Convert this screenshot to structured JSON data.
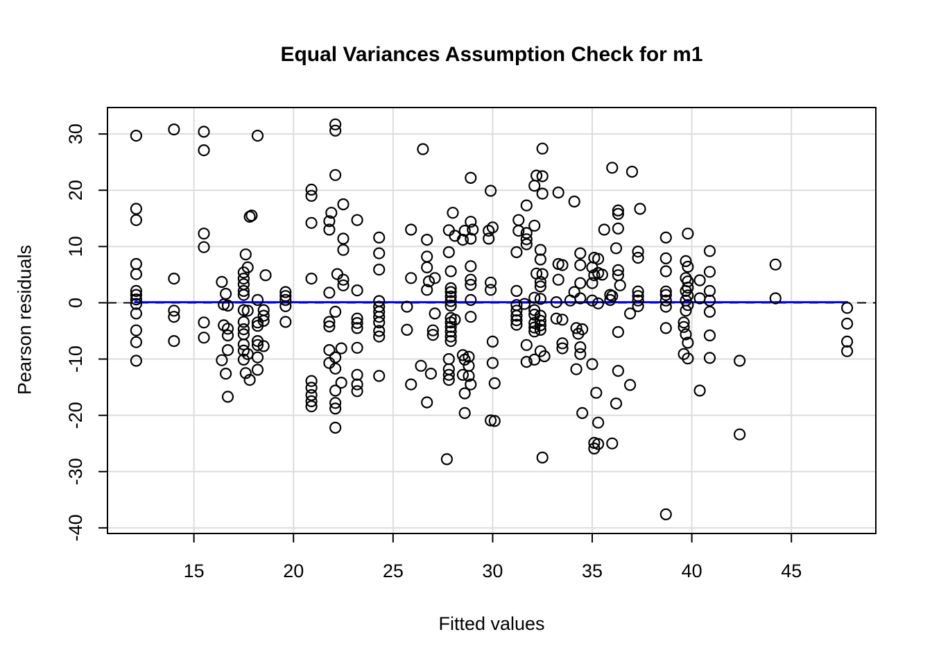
{
  "chart_data": {
    "type": "scatter",
    "title": "Equal Variances Assumption Check for m1",
    "xlabel": "Fitted values",
    "ylabel": "Pearson residuals",
    "xlim": [
      10.66,
      49.24
    ],
    "ylim": [
      -41.0,
      34.7
    ],
    "x_ticks": [
      15,
      20,
      25,
      30,
      35,
      40,
      45
    ],
    "y_ticks": [
      -40,
      -30,
      -20,
      -10,
      0,
      10,
      20,
      30
    ],
    "grid": true,
    "legend": false,
    "colors": {
      "background": "#ffffff",
      "grid": "#dcdcdc",
      "box": "#000000",
      "points": "#000000",
      "zero_line": "#000000",
      "smooth_line": "#0000ff"
    },
    "zero_line": {
      "y": 0,
      "style": "dashed",
      "x_start": 10.66,
      "x_end": 49.24
    },
    "smooth_line": {
      "y": 0.1,
      "style": "solid",
      "x_start": 12.0,
      "x_end": 47.85
    },
    "point_style": {
      "shape": "open-circle",
      "radius_px": 7.5,
      "stroke_px": 2.2
    },
    "points": [
      [
        12.1,
        29.7
      ],
      [
        12.1,
        16.7
      ],
      [
        12.1,
        14.7
      ],
      [
        12.1,
        6.9
      ],
      [
        12.1,
        5.1
      ],
      [
        12.1,
        2.1
      ],
      [
        12.1,
        1.4
      ],
      [
        12.1,
        0.6
      ],
      [
        12.1,
        -0.2
      ],
      [
        12.1,
        -1.9
      ],
      [
        12.1,
        -4.9
      ],
      [
        12.1,
        -7.0
      ],
      [
        12.1,
        -10.3
      ],
      [
        14.0,
        30.8
      ],
      [
        14.0,
        4.3
      ],
      [
        14.0,
        -1.4
      ],
      [
        14.0,
        -2.5
      ],
      [
        14.0,
        -6.8
      ],
      [
        15.5,
        30.4
      ],
      [
        15.5,
        27.1
      ],
      [
        15.5,
        12.3
      ],
      [
        15.5,
        9.9
      ],
      [
        15.5,
        -3.5
      ],
      [
        15.5,
        -6.2
      ],
      [
        16.4,
        3.7
      ],
      [
        16.6,
        1.6
      ],
      [
        16.5,
        -0.3
      ],
      [
        16.7,
        -0.5
      ],
      [
        16.5,
        -4.0
      ],
      [
        16.7,
        -4.6
      ],
      [
        16.7,
        -5.8
      ],
      [
        16.7,
        -8.4
      ],
      [
        16.4,
        -10.2
      ],
      [
        16.6,
        -12.6
      ],
      [
        16.7,
        -16.7
      ],
      [
        17.8,
        15.3
      ],
      [
        17.9,
        15.5
      ],
      [
        17.6,
        8.6
      ],
      [
        17.7,
        6.3
      ],
      [
        17.5,
        5.4
      ],
      [
        17.5,
        4.3
      ],
      [
        17.5,
        3.3
      ],
      [
        17.5,
        2.1
      ],
      [
        17.5,
        1.4
      ],
      [
        17.5,
        -1.3
      ],
      [
        17.7,
        -1.4
      ],
      [
        17.5,
        -3.4
      ],
      [
        17.5,
        -4.7
      ],
      [
        17.5,
        -5.6
      ],
      [
        17.5,
        -7.4
      ],
      [
        17.5,
        -8.5
      ],
      [
        17.7,
        -9.1
      ],
      [
        17.5,
        -10.1
      ],
      [
        17.6,
        -12.5
      ],
      [
        17.8,
        -13.7
      ],
      [
        18.2,
        29.7
      ],
      [
        18.6,
        4.9
      ],
      [
        18.2,
        0.5
      ],
      [
        18.5,
        -1.3
      ],
      [
        18.5,
        -2.3
      ],
      [
        18.5,
        -3.2
      ],
      [
        18.2,
        -3.5
      ],
      [
        18.2,
        -4.1
      ],
      [
        18.2,
        -6.8
      ],
      [
        18.2,
        -7.5
      ],
      [
        18.5,
        -7.7
      ],
      [
        18.2,
        -9.7
      ],
      [
        18.2,
        -11.9
      ],
      [
        19.6,
        1.9
      ],
      [
        19.6,
        1.2
      ],
      [
        19.6,
        0.5
      ],
      [
        19.6,
        -0.6
      ],
      [
        19.6,
        -3.4
      ],
      [
        20.9,
        20.1
      ],
      [
        20.9,
        19.0
      ],
      [
        20.9,
        14.2
      ],
      [
        20.9,
        4.3
      ],
      [
        20.9,
        -13.9
      ],
      [
        20.9,
        -15.1
      ],
      [
        20.9,
        -16.4
      ],
      [
        20.9,
        -17.5
      ],
      [
        20.9,
        -18.4
      ],
      [
        21.9,
        16.0
      ],
      [
        21.8,
        14.5
      ],
      [
        21.8,
        13.0
      ],
      [
        21.8,
        1.8
      ],
      [
        21.8,
        -3.4
      ],
      [
        21.8,
        -4.2
      ],
      [
        21.8,
        -8.4
      ],
      [
        21.8,
        -10.7
      ],
      [
        22.1,
        31.7
      ],
      [
        22.1,
        30.6
      ],
      [
        22.1,
        22.7
      ],
      [
        22.5,
        17.5
      ],
      [
        22.5,
        11.4
      ],
      [
        22.5,
        9.4
      ],
      [
        22.2,
        5.1
      ],
      [
        22.5,
        4.1
      ],
      [
        22.5,
        3.1
      ],
      [
        22.1,
        -1.6
      ],
      [
        22.4,
        -8.1
      ],
      [
        22.1,
        -9.7
      ],
      [
        22.1,
        -11.7
      ],
      [
        22.4,
        -14.2
      ],
      [
        22.1,
        -15.6
      ],
      [
        22.1,
        -17.8
      ],
      [
        22.1,
        -18.8
      ],
      [
        22.1,
        -22.2
      ],
      [
        23.2,
        14.7
      ],
      [
        23.2,
        2.2
      ],
      [
        23.2,
        -2.8
      ],
      [
        23.2,
        -3.6
      ],
      [
        23.2,
        -4.5
      ],
      [
        23.2,
        -8.0
      ],
      [
        23.2,
        -12.8
      ],
      [
        23.2,
        -14.5
      ],
      [
        23.2,
        -15.7
      ],
      [
        24.3,
        11.6
      ],
      [
        24.3,
        8.8
      ],
      [
        24.3,
        5.9
      ],
      [
        24.3,
        0.3
      ],
      [
        24.3,
        -0.7
      ],
      [
        24.3,
        -1.6
      ],
      [
        24.3,
        -2.5
      ],
      [
        24.3,
        -3.5
      ],
      [
        24.3,
        -5.0
      ],
      [
        24.3,
        -6.0
      ],
      [
        24.3,
        -13.0
      ],
      [
        25.9,
        13.0
      ],
      [
        25.9,
        4.4
      ],
      [
        25.7,
        -0.7
      ],
      [
        25.7,
        -4.8
      ],
      [
        25.9,
        -14.5
      ],
      [
        26.5,
        27.3
      ],
      [
        26.7,
        11.2
      ],
      [
        26.7,
        8.2
      ],
      [
        26.7,
        6.3
      ],
      [
        26.8,
        3.8
      ],
      [
        27.1,
        4.4
      ],
      [
        26.7,
        2.3
      ],
      [
        27.1,
        -1.9
      ],
      [
        27.0,
        -4.9
      ],
      [
        27.0,
        -5.7
      ],
      [
        26.4,
        -11.2
      ],
      [
        26.9,
        -12.6
      ],
      [
        26.7,
        -17.7
      ],
      [
        28.0,
        16.0
      ],
      [
        27.8,
        12.9
      ],
      [
        28.1,
        11.9
      ],
      [
        27.8,
        9.0
      ],
      [
        27.9,
        5.6
      ],
      [
        27.9,
        2.6
      ],
      [
        27.9,
        1.9
      ],
      [
        27.9,
        1.1
      ],
      [
        27.9,
        0.3
      ],
      [
        27.9,
        -0.5
      ],
      [
        27.9,
        -2.7
      ],
      [
        28.1,
        -3.0
      ],
      [
        27.9,
        -3.5
      ],
      [
        27.9,
        -4.3
      ],
      [
        27.9,
        -5.1
      ],
      [
        27.9,
        -6.0
      ],
      [
        27.9,
        -6.8
      ],
      [
        27.8,
        -10.0
      ],
      [
        27.8,
        -11.8
      ],
      [
        27.8,
        -12.8
      ],
      [
        27.8,
        -13.7
      ],
      [
        27.7,
        -27.8
      ],
      [
        28.9,
        22.2
      ],
      [
        28.9,
        14.4
      ],
      [
        28.6,
        12.8
      ],
      [
        29.0,
        13.0
      ],
      [
        28.5,
        11.2
      ],
      [
        28.9,
        11.4
      ],
      [
        28.9,
        6.5
      ],
      [
        28.9,
        4.1
      ],
      [
        28.9,
        3.2
      ],
      [
        28.9,
        0.5
      ],
      [
        28.9,
        -2.5
      ],
      [
        28.5,
        -9.3
      ],
      [
        28.8,
        -9.6
      ],
      [
        28.6,
        -10.1
      ],
      [
        28.8,
        -11.2
      ],
      [
        28.5,
        -12.8
      ],
      [
        28.8,
        -13.0
      ],
      [
        28.9,
        -14.5
      ],
      [
        28.6,
        -16.1
      ],
      [
        28.6,
        -19.6
      ],
      [
        29.9,
        19.9
      ],
      [
        30.0,
        13.4
      ],
      [
        29.8,
        12.8
      ],
      [
        29.8,
        11.4
      ],
      [
        29.9,
        3.6
      ],
      [
        29.9,
        2.3
      ],
      [
        30.0,
        -6.9
      ],
      [
        30.0,
        -10.7
      ],
      [
        30.1,
        -14.3
      ],
      [
        29.9,
        -20.9
      ],
      [
        30.1,
        -21.0
      ],
      [
        31.7,
        17.3
      ],
      [
        31.3,
        14.7
      ],
      [
        31.3,
        12.8
      ],
      [
        31.7,
        12.4
      ],
      [
        31.7,
        11.3
      ],
      [
        31.7,
        10.4
      ],
      [
        31.2,
        9.0
      ],
      [
        31.2,
        2.1
      ],
      [
        31.2,
        -0.4
      ],
      [
        31.6,
        -0.2
      ],
      [
        31.2,
        -1.4
      ],
      [
        31.2,
        -2.3
      ],
      [
        31.2,
        -3.1
      ],
      [
        31.2,
        -3.9
      ],
      [
        31.7,
        -7.5
      ],
      [
        31.7,
        -10.5
      ],
      [
        32.5,
        27.4
      ],
      [
        32.2,
        22.6
      ],
      [
        32.5,
        22.5
      ],
      [
        32.1,
        20.8
      ],
      [
        32.5,
        19.4
      ],
      [
        32.1,
        13.7
      ],
      [
        32.4,
        9.4
      ],
      [
        32.4,
        7.7
      ],
      [
        32.2,
        5.2
      ],
      [
        32.5,
        5.1
      ],
      [
        32.4,
        3.7
      ],
      [
        32.4,
        2.9
      ],
      [
        32.1,
        0.9
      ],
      [
        32.4,
        0.7
      ],
      [
        32.1,
        -1.3
      ],
      [
        32.1,
        -2.1
      ],
      [
        32.4,
        -2.3
      ],
      [
        32.4,
        -3.2
      ],
      [
        32.1,
        -3.6
      ],
      [
        32.4,
        -4.0
      ],
      [
        32.1,
        -4.4
      ],
      [
        32.4,
        -4.8
      ],
      [
        32.1,
        -5.1
      ],
      [
        32.4,
        -8.6
      ],
      [
        32.6,
        -9.5
      ],
      [
        32.1,
        -10.1
      ],
      [
        32.5,
        -27.5
      ],
      [
        33.3,
        19.6
      ],
      [
        33.3,
        6.9
      ],
      [
        33.5,
        6.7
      ],
      [
        33.3,
        4.1
      ],
      [
        33.2,
        0.1
      ],
      [
        33.9,
        0.4
      ],
      [
        33.2,
        -2.8
      ],
      [
        33.5,
        -3.0
      ],
      [
        33.5,
        -7.2
      ],
      [
        33.5,
        -8.1
      ],
      [
        34.1,
        18.0
      ],
      [
        34.4,
        8.8
      ],
      [
        34.4,
        6.7
      ],
      [
        34.4,
        3.5
      ],
      [
        34.1,
        1.9
      ],
      [
        34.4,
        0.8
      ],
      [
        34.2,
        -4.5
      ],
      [
        34.5,
        -4.7
      ],
      [
        34.3,
        -5.5
      ],
      [
        34.4,
        -7.9
      ],
      [
        34.4,
        -9.1
      ],
      [
        34.2,
        -11.8
      ],
      [
        34.5,
        -19.6
      ],
      [
        35.1,
        8.0
      ],
      [
        35.3,
        7.8
      ],
      [
        35.0,
        6.3
      ],
      [
        35.1,
        4.9
      ],
      [
        35.3,
        5.3
      ],
      [
        35.5,
        5.0
      ],
      [
        35.0,
        3.5
      ],
      [
        35.0,
        0.4
      ],
      [
        35.3,
        -0.1
      ],
      [
        35.0,
        -10.9
      ],
      [
        35.2,
        -16.0
      ],
      [
        35.3,
        -21.3
      ],
      [
        35.1,
        -24.9
      ],
      [
        35.3,
        -25.1
      ],
      [
        35.1,
        -25.9
      ],
      [
        35.6,
        13.0
      ],
      [
        36.2,
        9.7
      ],
      [
        35.9,
        1.4
      ],
      [
        36.0,
        1.2
      ],
      [
        35.9,
        0.5
      ],
      [
        36.3,
        16.4
      ],
      [
        36.3,
        15.8
      ],
      [
        36.3,
        13.2
      ],
      [
        36.3,
        5.8
      ],
      [
        36.3,
        4.9
      ],
      [
        36.4,
        3.1
      ],
      [
        36.3,
        -5.2
      ],
      [
        36.3,
        -12.1
      ],
      [
        36.2,
        -17.9
      ],
      [
        36.0,
        -25.0
      ],
      [
        36.0,
        24.0
      ],
      [
        37.0,
        23.3
      ],
      [
        37.4,
        16.7
      ],
      [
        37.3,
        9.1
      ],
      [
        37.3,
        8.0
      ],
      [
        37.3,
        2.0
      ],
      [
        37.3,
        1.2
      ],
      [
        37.3,
        0.4
      ],
      [
        37.3,
        -0.6
      ],
      [
        36.9,
        -1.9
      ],
      [
        36.9,
        -14.6
      ],
      [
        38.7,
        11.6
      ],
      [
        38.7,
        7.9
      ],
      [
        38.7,
        5.6
      ],
      [
        38.7,
        2.0
      ],
      [
        38.7,
        1.4
      ],
      [
        38.7,
        0.4
      ],
      [
        38.7,
        -0.7
      ],
      [
        38.7,
        -4.5
      ],
      [
        38.7,
        -37.6
      ],
      [
        39.8,
        12.3
      ],
      [
        39.7,
        7.4
      ],
      [
        39.8,
        6.4
      ],
      [
        39.7,
        4.4
      ],
      [
        39.8,
        3.8
      ],
      [
        39.8,
        2.7
      ],
      [
        39.7,
        2.1
      ],
      [
        39.8,
        1.3
      ],
      [
        39.7,
        0.4
      ],
      [
        39.8,
        -0.4
      ],
      [
        39.7,
        -1.4
      ],
      [
        39.6,
        -3.5
      ],
      [
        39.6,
        -4.3
      ],
      [
        39.7,
        -5.6
      ],
      [
        39.8,
        -7.1
      ],
      [
        39.6,
        -9.1
      ],
      [
        39.8,
        -9.9
      ],
      [
        40.4,
        4.0
      ],
      [
        40.4,
        0.8
      ],
      [
        40.9,
        9.2
      ],
      [
        40.9,
        5.5
      ],
      [
        40.9,
        2.1
      ],
      [
        40.9,
        0.4
      ],
      [
        40.9,
        -1.6
      ],
      [
        40.9,
        -5.8
      ],
      [
        40.9,
        -9.8
      ],
      [
        40.4,
        -15.6
      ],
      [
        42.4,
        -10.3
      ],
      [
        42.4,
        -23.4
      ],
      [
        44.2,
        6.8
      ],
      [
        44.2,
        0.8
      ],
      [
        47.8,
        -0.9
      ],
      [
        47.8,
        -3.7
      ],
      [
        47.8,
        -6.9
      ],
      [
        47.8,
        -8.6
      ]
    ]
  }
}
